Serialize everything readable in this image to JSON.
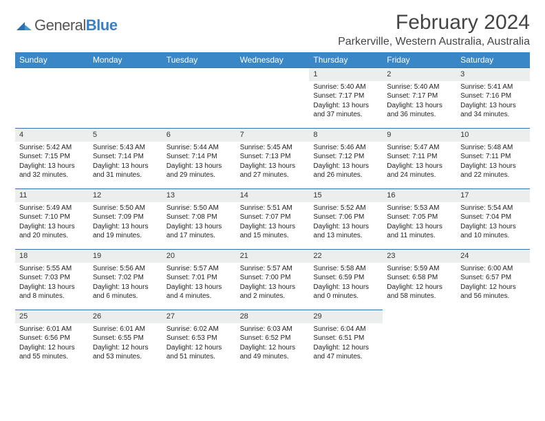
{
  "logo": {
    "part1": "General",
    "part2": "Blue"
  },
  "title": "February 2024",
  "location": "Parkerville, Western Australia, Australia",
  "colors": {
    "header_bg": "#3a87c7",
    "daynum_bg": "#eceded",
    "border": "#3a6fa5"
  },
  "weekdays": [
    "Sunday",
    "Monday",
    "Tuesday",
    "Wednesday",
    "Thursday",
    "Friday",
    "Saturday"
  ],
  "leading_blanks": 4,
  "days": [
    {
      "n": "1",
      "sunrise": "5:40 AM",
      "sunset": "7:17 PM",
      "daylight": "13 hours and 37 minutes."
    },
    {
      "n": "2",
      "sunrise": "5:40 AM",
      "sunset": "7:17 PM",
      "daylight": "13 hours and 36 minutes."
    },
    {
      "n": "3",
      "sunrise": "5:41 AM",
      "sunset": "7:16 PM",
      "daylight": "13 hours and 34 minutes."
    },
    {
      "n": "4",
      "sunrise": "5:42 AM",
      "sunset": "7:15 PM",
      "daylight": "13 hours and 32 minutes."
    },
    {
      "n": "5",
      "sunrise": "5:43 AM",
      "sunset": "7:14 PM",
      "daylight": "13 hours and 31 minutes."
    },
    {
      "n": "6",
      "sunrise": "5:44 AM",
      "sunset": "7:14 PM",
      "daylight": "13 hours and 29 minutes."
    },
    {
      "n": "7",
      "sunrise": "5:45 AM",
      "sunset": "7:13 PM",
      "daylight": "13 hours and 27 minutes."
    },
    {
      "n": "8",
      "sunrise": "5:46 AM",
      "sunset": "7:12 PM",
      "daylight": "13 hours and 26 minutes."
    },
    {
      "n": "9",
      "sunrise": "5:47 AM",
      "sunset": "7:11 PM",
      "daylight": "13 hours and 24 minutes."
    },
    {
      "n": "10",
      "sunrise": "5:48 AM",
      "sunset": "7:11 PM",
      "daylight": "13 hours and 22 minutes."
    },
    {
      "n": "11",
      "sunrise": "5:49 AM",
      "sunset": "7:10 PM",
      "daylight": "13 hours and 20 minutes."
    },
    {
      "n": "12",
      "sunrise": "5:50 AM",
      "sunset": "7:09 PM",
      "daylight": "13 hours and 19 minutes."
    },
    {
      "n": "13",
      "sunrise": "5:50 AM",
      "sunset": "7:08 PM",
      "daylight": "13 hours and 17 minutes."
    },
    {
      "n": "14",
      "sunrise": "5:51 AM",
      "sunset": "7:07 PM",
      "daylight": "13 hours and 15 minutes."
    },
    {
      "n": "15",
      "sunrise": "5:52 AM",
      "sunset": "7:06 PM",
      "daylight": "13 hours and 13 minutes."
    },
    {
      "n": "16",
      "sunrise": "5:53 AM",
      "sunset": "7:05 PM",
      "daylight": "13 hours and 11 minutes."
    },
    {
      "n": "17",
      "sunrise": "5:54 AM",
      "sunset": "7:04 PM",
      "daylight": "13 hours and 10 minutes."
    },
    {
      "n": "18",
      "sunrise": "5:55 AM",
      "sunset": "7:03 PM",
      "daylight": "13 hours and 8 minutes."
    },
    {
      "n": "19",
      "sunrise": "5:56 AM",
      "sunset": "7:02 PM",
      "daylight": "13 hours and 6 minutes."
    },
    {
      "n": "20",
      "sunrise": "5:57 AM",
      "sunset": "7:01 PM",
      "daylight": "13 hours and 4 minutes."
    },
    {
      "n": "21",
      "sunrise": "5:57 AM",
      "sunset": "7:00 PM",
      "daylight": "13 hours and 2 minutes."
    },
    {
      "n": "22",
      "sunrise": "5:58 AM",
      "sunset": "6:59 PM",
      "daylight": "13 hours and 0 minutes."
    },
    {
      "n": "23",
      "sunrise": "5:59 AM",
      "sunset": "6:58 PM",
      "daylight": "12 hours and 58 minutes."
    },
    {
      "n": "24",
      "sunrise": "6:00 AM",
      "sunset": "6:57 PM",
      "daylight": "12 hours and 56 minutes."
    },
    {
      "n": "25",
      "sunrise": "6:01 AM",
      "sunset": "6:56 PM",
      "daylight": "12 hours and 55 minutes."
    },
    {
      "n": "26",
      "sunrise": "6:01 AM",
      "sunset": "6:55 PM",
      "daylight": "12 hours and 53 minutes."
    },
    {
      "n": "27",
      "sunrise": "6:02 AM",
      "sunset": "6:53 PM",
      "daylight": "12 hours and 51 minutes."
    },
    {
      "n": "28",
      "sunrise": "6:03 AM",
      "sunset": "6:52 PM",
      "daylight": "12 hours and 49 minutes."
    },
    {
      "n": "29",
      "sunrise": "6:04 AM",
      "sunset": "6:51 PM",
      "daylight": "12 hours and 47 minutes."
    }
  ],
  "labels": {
    "sunrise": "Sunrise: ",
    "sunset": "Sunset: ",
    "daylight": "Daylight: "
  }
}
